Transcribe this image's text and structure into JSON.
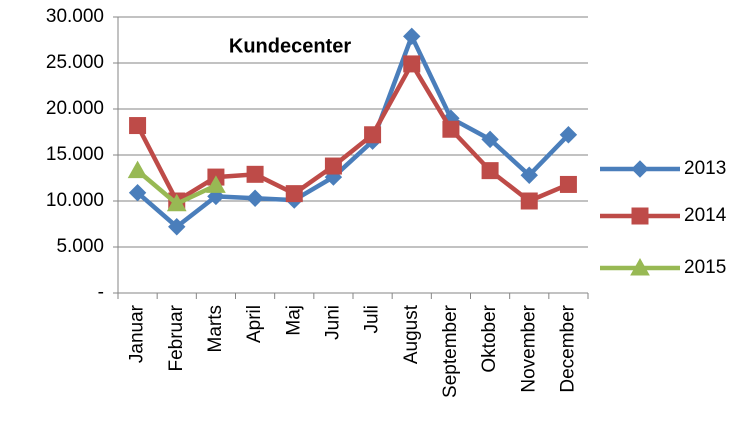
{
  "chart_data": {
    "type": "line",
    "title": "Kundecenter",
    "categories": [
      "Januar",
      "Februar",
      "Marts",
      "April",
      "Maj",
      "Juni",
      "Juli",
      "August",
      "September",
      "Oktober",
      "November",
      "December"
    ],
    "series": [
      {
        "name": "2013",
        "color": "#4a7ebb",
        "marker": "diamond",
        "values": [
          10900,
          7200,
          10500,
          10300,
          10100,
          12600,
          16500,
          27900,
          19000,
          16700,
          12800,
          17200
        ]
      },
      {
        "name": "2014",
        "color": "#be4b48",
        "marker": "square",
        "values": [
          18200,
          10000,
          12600,
          12900,
          10800,
          13800,
          17200,
          24900,
          17800,
          13300,
          10000,
          11800
        ]
      },
      {
        "name": "2015",
        "color": "#98b954",
        "marker": "triangle",
        "values": [
          13300,
          9700,
          11700,
          null,
          null,
          null,
          null,
          null,
          null,
          null,
          null,
          null
        ]
      }
    ],
    "ylim": [
      0,
      30000
    ],
    "yticks": [
      {
        "value": 0,
        "label": "-"
      },
      {
        "value": 5000,
        "label": "5.000"
      },
      {
        "value": 10000,
        "label": "10.000"
      },
      {
        "value": 15000,
        "label": "15.000"
      },
      {
        "value": 20000,
        "label": "20.000"
      },
      {
        "value": 25000,
        "label": "25.000"
      },
      {
        "value": 30000,
        "label": "30.000"
      }
    ],
    "grid": true,
    "legend": "right"
  }
}
